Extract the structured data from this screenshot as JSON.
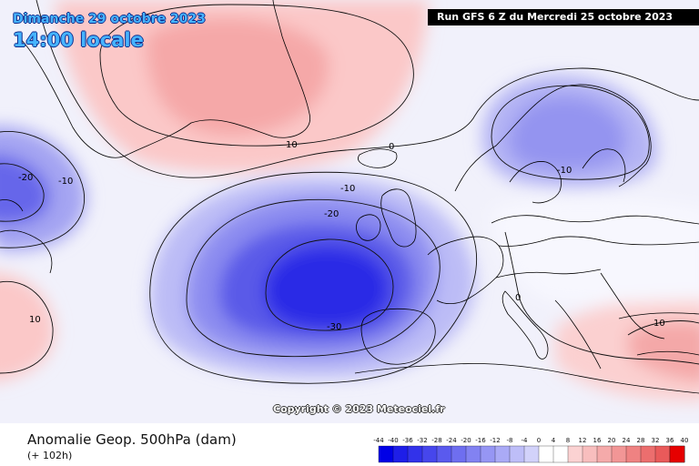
{
  "header": {
    "date": "Dimanche 29 octobre 2023",
    "time": "14:00 locale",
    "run": "Run GFS 6 Z du Mercredi 25 octobre 2023"
  },
  "copyright": "Copyright © 2023 Meteociel.fr",
  "footer": {
    "title": "Anomalie Geop. 500hPa (dam)",
    "subtitle": "(+ 102h)"
  },
  "contour_labels": [
    {
      "text": "10",
      "name": "contour-label-greenland"
    },
    {
      "text": "0",
      "name": "contour-label-north-atlantic"
    },
    {
      "text": "-20",
      "name": "contour-label-canada-low"
    },
    {
      "text": "-10",
      "name": "contour-label-canada-ring"
    },
    {
      "text": "-10",
      "name": "contour-label-atlantic-outer"
    },
    {
      "text": "-20",
      "name": "contour-label-atlantic-mid"
    },
    {
      "text": "-30",
      "name": "contour-label-atlantic-core"
    },
    {
      "text": "-10",
      "name": "contour-label-scandinavia"
    },
    {
      "text": "10",
      "name": "contour-label-west-atlantic"
    },
    {
      "text": "10",
      "name": "contour-label-east-med"
    },
    {
      "text": "0",
      "name": "contour-label-alps"
    }
  ],
  "legend": {
    "values": [
      "-44",
      "-40",
      "-36",
      "-32",
      "-28",
      "-24",
      "-20",
      "-16",
      "-12",
      "-8",
      "-4",
      "0",
      "4",
      "8",
      "12",
      "16",
      "20",
      "24",
      "28",
      "32",
      "36",
      "40"
    ],
    "colors": [
      "#0000e6",
      "#1e1ee8",
      "#3232ea",
      "#4646ec",
      "#5a5aee",
      "#6e6ef0",
      "#8282f2",
      "#9696f4",
      "#aaaaf6",
      "#bebef8",
      "#d2d2fa",
      "#ffffff",
      "#ffffff",
      "#fbd2d2",
      "#f8bebe",
      "#f5aaaa",
      "#f29696",
      "#ef8282",
      "#ec6e6e",
      "#e95a5a",
      "#e63232",
      "#e60000"
    ]
  }
}
